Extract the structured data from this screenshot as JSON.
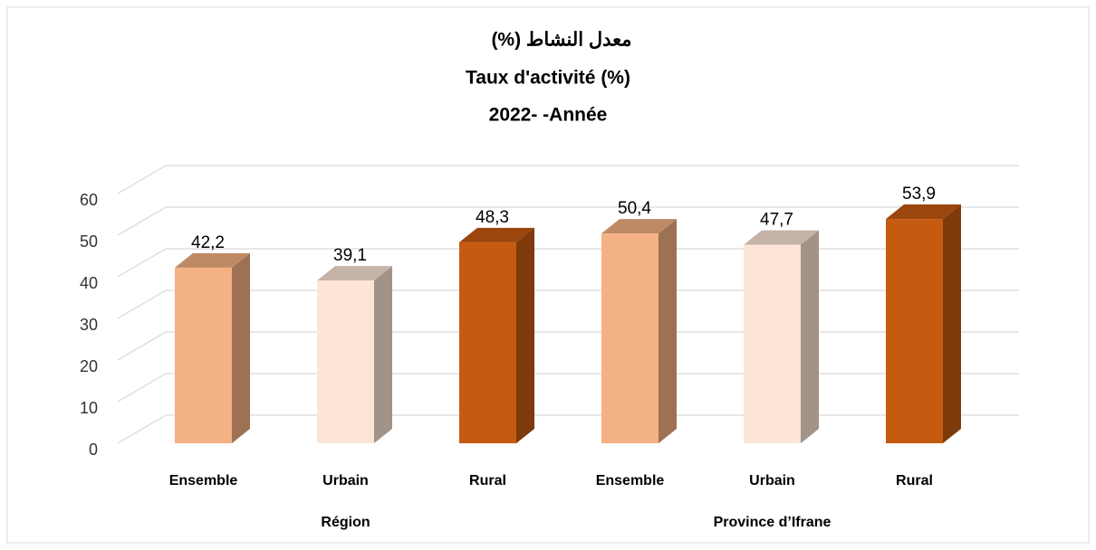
{
  "chart_data": {
    "type": "bar3d",
    "title": "معدل النشاط (%)",
    "subtitle": "Taux d'activité (%)",
    "year_label": "2022- -Année",
    "groups": [
      {
        "name": "Région",
        "categories": [
          "Ensemble",
          "Urbain",
          "Rural"
        ],
        "values": [
          42.2,
          39.1,
          48.3
        ],
        "value_labels": [
          "42,2",
          "39,1",
          "48,3"
        ]
      },
      {
        "name": "Province d’Ifrane",
        "categories": [
          "Ensemble",
          "Urbain",
          "Rural"
        ],
        "values": [
          50.4,
          47.7,
          53.9
        ],
        "value_labels": [
          "50,4",
          "47,7",
          "53,9"
        ]
      }
    ],
    "colors": [
      "#f4b183",
      "#fde5d6",
      "#c55a11"
    ],
    "ylim": [
      0,
      60
    ],
    "yticks": [
      0,
      10,
      20,
      30,
      40,
      50,
      60
    ],
    "grid": true
  }
}
